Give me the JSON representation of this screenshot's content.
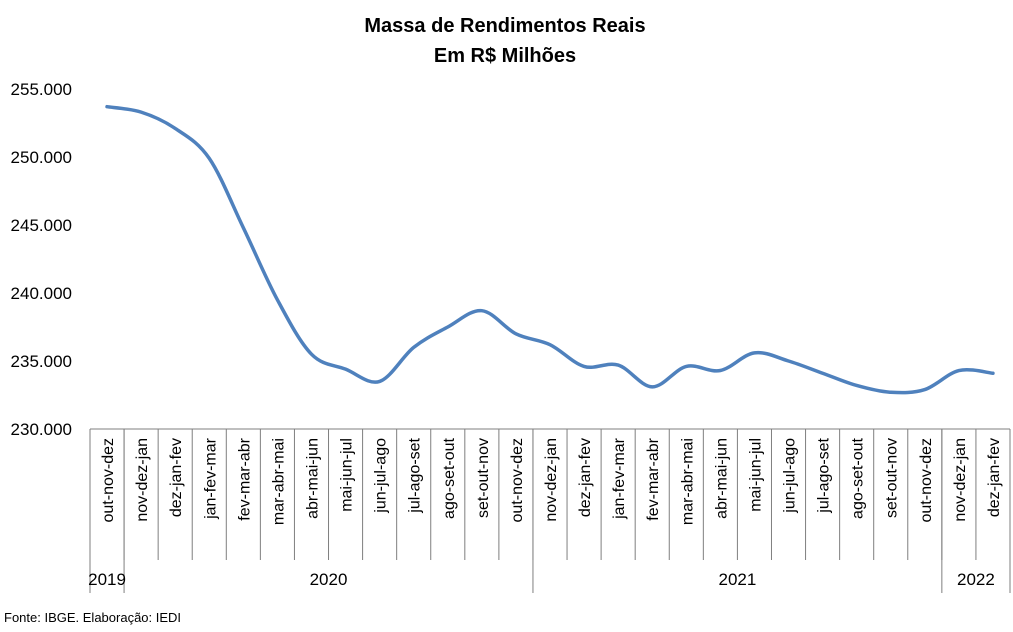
{
  "chart_data": {
    "type": "line",
    "title": "Massa de Rendimentos Reais",
    "subtitle": "Em R$ Milhões",
    "ylim": [
      230000,
      255000
    ],
    "yticks": [
      230000,
      235000,
      240000,
      245000,
      250000,
      255000
    ],
    "ytick_labels": [
      "230.000",
      "235.000",
      "240.000",
      "245.000",
      "250.000",
      "255.000"
    ],
    "categories": [
      "out-nov-dez",
      "nov-dez-jan",
      "dez-jan-fev",
      "jan-fev-mar",
      "fev-mar-abr",
      "mar-abr-mai",
      "abr-mai-jun",
      "mai-jun-jul",
      "jun-jul-ago",
      "jul-ago-set",
      "ago-set-out",
      "set-out-nov",
      "out-nov-dez",
      "nov-dez-jan",
      "dez-jan-fev",
      "jan-fev-mar",
      "fev-mar-abr",
      "mar-abr-mai",
      "abr-mai-jun",
      "mai-jun-jul",
      "jun-jul-ago",
      "jul-ago-set",
      "ago-set-out",
      "set-out-nov",
      "out-nov-dez",
      "nov-dez-jan",
      "dez-jan-fev"
    ],
    "series": [
      {
        "values": [
          253700,
          253300,
          252100,
          249900,
          244800,
          239500,
          235500,
          234400,
          233500,
          236000,
          237500,
          238700,
          237000,
          236200,
          234600,
          234700,
          233100,
          234600,
          234300,
          235600,
          235000,
          234100,
          233200,
          232700,
          232900,
          234300,
          234100
        ]
      }
    ],
    "year_groups": [
      {
        "label": "2019",
        "start": 0,
        "end": 0
      },
      {
        "label": "2020",
        "start": 1,
        "end": 12
      },
      {
        "label": "2021",
        "start": 13,
        "end": 24
      },
      {
        "label": "2022",
        "start": 25,
        "end": 26
      }
    ],
    "line_color": "#4f81bd",
    "grid": false,
    "legend": "none"
  },
  "footer": {
    "source": "Fonte: IBGE. Elaboração: IEDI"
  }
}
